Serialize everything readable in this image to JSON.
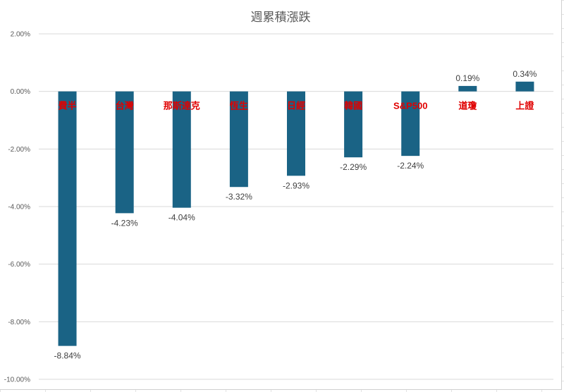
{
  "chart_data": {
    "type": "bar",
    "title": "週累積漲跌",
    "xlabel": "",
    "ylabel": "",
    "categories": [
      "費半",
      "台灣",
      "那斯達克",
      "恆生",
      "日經",
      "韓國",
      "S&P500",
      "道瓊",
      "上證"
    ],
    "values": [
      -8.84,
      -4.23,
      -4.04,
      -3.32,
      -2.93,
      -2.29,
      -2.24,
      0.19,
      0.34
    ],
    "data_labels": [
      "-8.84%",
      "-4.23%",
      "-4.04%",
      "-3.32%",
      "-2.93%",
      "-2.29%",
      "-2.24%",
      "0.19%",
      "0.34%"
    ],
    "ylim": [
      -10,
      2
    ],
    "yticks": [
      2,
      0,
      -2,
      -4,
      -6,
      -8,
      -10
    ],
    "ytick_labels": [
      "2.00%",
      "0.00%",
      "-2.00%",
      "-4.00%",
      "-6.00%",
      "-8.00%",
      "-10.00%"
    ],
    "grid": true,
    "legend": "none",
    "colors": {
      "bar": "#1a6385",
      "category_label": "#e00000",
      "gridline": "#d9d9d9",
      "text": "#595959"
    }
  }
}
